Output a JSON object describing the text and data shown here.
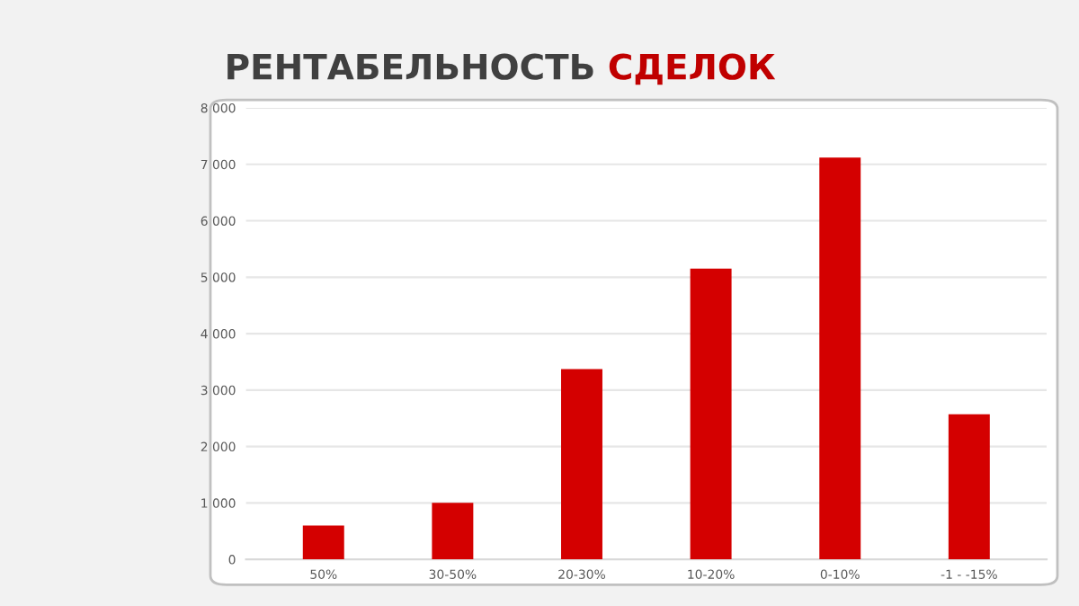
{
  "chart_data": {
    "type": "bar",
    "title": "РЕНТАБЕЛЬНОСТЬ СДЕЛОК",
    "categories": [
      "50%",
      "30-50%",
      "20-30%",
      "10-20%",
      "0-10%",
      "-1 - -15%"
    ],
    "values": [
      600,
      1000,
      3370,
      5150,
      7120,
      2570
    ],
    "color": "#d40000",
    "ylim": [
      0,
      8000
    ],
    "yticks": [
      0,
      {
        "value": 1000,
        "label": "1 000"
      },
      {
        "value": 2000,
        "label": "2 000"
      },
      {
        "value": 3000,
        "label": "3 000"
      },
      {
        "value": 4000,
        "label": "4 000"
      },
      {
        "value": 5000,
        "label": "5 000"
      },
      {
        "value": 6000,
        "label": "6 000"
      },
      {
        "value": 7000,
        "label": "7 000"
      },
      {
        "value": 8000,
        "label": "8 000"
      }
    ],
    "grid": "y",
    "legend": false
  }
}
